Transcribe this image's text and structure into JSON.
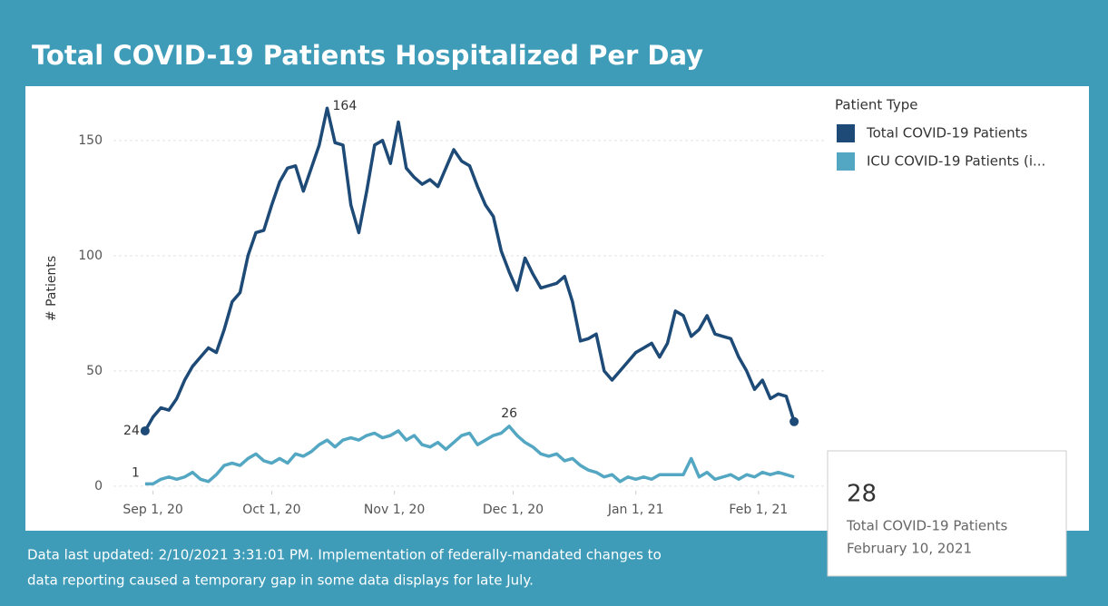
{
  "chart_data": {
    "type": "line",
    "title": "Total COVID-19 Patients Hospitalized Per Day",
    "y_label": "# Patients",
    "legend_title": "Patient Type",
    "legend_position": "right",
    "grid": true,
    "footnote": [
      "Data last updated: 2/10/2021 3:31:01 PM. Implementation of federally-mandated changes to",
      "data reporting caused a temporary gap in some data displays for late July."
    ],
    "tooltip": {
      "series": 0,
      "index": 82,
      "date": "February 10, 2021"
    },
    "xlim": [
      "2020-08-22",
      "2021-02-18"
    ],
    "xticks": [
      {
        "value": "2020-09-01",
        "label": "Sep 1, 20"
      },
      {
        "value": "2020-10-01",
        "label": "Oct 1, 20"
      },
      {
        "value": "2020-11-01",
        "label": "Nov 1, 20"
      },
      {
        "value": "2020-12-01",
        "label": "Dec 1, 20"
      },
      {
        "value": "2021-01-01",
        "label": "Jan 1, 21"
      },
      {
        "value": "2021-02-01",
        "label": "Feb 1, 21"
      }
    ],
    "ylim": [
      -2,
      170
    ],
    "yticks": [
      0,
      50,
      100,
      150
    ],
    "x": [
      "2020-08-30",
      "2020-09-01",
      "2020-09-03",
      "2020-09-05",
      "2020-09-07",
      "2020-09-09",
      "2020-09-11",
      "2020-09-13",
      "2020-09-15",
      "2020-09-17",
      "2020-09-19",
      "2020-09-21",
      "2020-09-23",
      "2020-09-25",
      "2020-09-27",
      "2020-09-29",
      "2020-10-01",
      "2020-10-03",
      "2020-10-05",
      "2020-10-07",
      "2020-10-09",
      "2020-10-11",
      "2020-10-13",
      "2020-10-15",
      "2020-10-17",
      "2020-10-19",
      "2020-10-21",
      "2020-10-23",
      "2020-10-25",
      "2020-10-27",
      "2020-10-29",
      "2020-10-31",
      "2020-11-02",
      "2020-11-04",
      "2020-11-06",
      "2020-11-08",
      "2020-11-10",
      "2020-11-12",
      "2020-11-14",
      "2020-11-16",
      "2020-11-18",
      "2020-11-20",
      "2020-11-22",
      "2020-11-24",
      "2020-11-26",
      "2020-11-28",
      "2020-11-30",
      "2020-12-02",
      "2020-12-04",
      "2020-12-06",
      "2020-12-08",
      "2020-12-10",
      "2020-12-12",
      "2020-12-14",
      "2020-12-16",
      "2020-12-18",
      "2020-12-20",
      "2020-12-22",
      "2020-12-24",
      "2020-12-26",
      "2020-12-28",
      "2020-12-30",
      "2021-01-01",
      "2021-01-03",
      "2021-01-05",
      "2021-01-07",
      "2021-01-09",
      "2021-01-11",
      "2021-01-13",
      "2021-01-15",
      "2021-01-17",
      "2021-01-19",
      "2021-01-21",
      "2021-01-23",
      "2021-01-25",
      "2021-01-27",
      "2021-01-29",
      "2021-01-31",
      "2021-02-02",
      "2021-02-04",
      "2021-02-06",
      "2021-02-08",
      "2021-02-10"
    ],
    "series": [
      {
        "name": "Total COVID-19 Patients",
        "color": "#1d4a76",
        "labeled": [
          0,
          23
        ],
        "values": [
          24,
          30,
          34,
          33,
          38,
          46,
          52,
          56,
          60,
          58,
          68,
          80,
          84,
          100,
          110,
          111,
          122,
          132,
          138,
          139,
          128,
          138,
          148,
          164,
          149,
          148,
          122,
          110,
          128,
          148,
          150,
          140,
          158,
          138,
          134,
          131,
          133,
          130,
          138,
          146,
          141,
          139,
          130,
          122,
          117,
          102,
          93,
          85,
          99,
          92,
          86,
          87,
          88,
          91,
          80,
          63,
          64,
          66,
          50,
          46,
          50,
          54,
          58,
          60,
          62,
          56,
          62,
          76,
          74,
          65,
          68,
          74,
          66,
          65,
          64,
          56,
          50,
          42,
          46,
          38,
          40,
          39,
          28
        ]
      },
      {
        "name": "ICU COVID-19 Patients (i...",
        "color": "#53a7c3",
        "labeled": [
          0,
          46
        ],
        "values": [
          1,
          1,
          3,
          4,
          3,
          4,
          6,
          3,
          2,
          5,
          9,
          10,
          9,
          12,
          14,
          11,
          10,
          12,
          10,
          14,
          13,
          15,
          18,
          20,
          17,
          20,
          21,
          20,
          22,
          23,
          21,
          22,
          24,
          20,
          22,
          18,
          17,
          19,
          16,
          19,
          22,
          23,
          18,
          20,
          22,
          23,
          26,
          22,
          19,
          17,
          14,
          13,
          14,
          11,
          12,
          9,
          7,
          6,
          4,
          5,
          2,
          4,
          3,
          4,
          3,
          5,
          5,
          5,
          5,
          12,
          4,
          6,
          3,
          4,
          5,
          3,
          5,
          4,
          6,
          5,
          6,
          5,
          4
        ]
      }
    ]
  }
}
